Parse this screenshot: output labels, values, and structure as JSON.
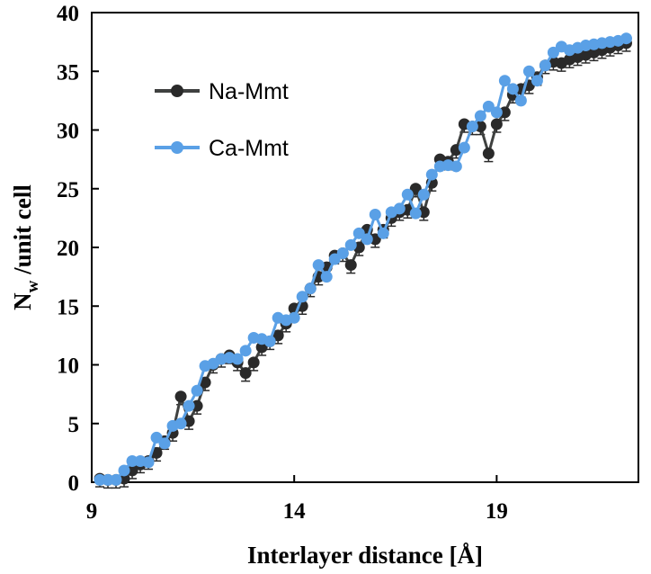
{
  "chart_data": {
    "type": "line",
    "xlabel": "Interlayer distance [Å]",
    "ylabel_main": "N",
    "ylabel_sub": "w",
    "ylabel_rest": " /unit cell",
    "xlim": [
      9,
      22.5
    ],
    "ylim": [
      0,
      40
    ],
    "xticks": [
      9,
      14,
      19
    ],
    "yticks": [
      0,
      5,
      10,
      15,
      20,
      25,
      30,
      35,
      40
    ],
    "grid": false,
    "legend_position": "upper-left",
    "series": [
      {
        "name": "Na-Mmt",
        "color": "#3f4140",
        "marker_color": "#2a2a2a",
        "x": [
          9.2,
          9.4,
          9.6,
          9.8,
          10.0,
          10.2,
          10.4,
          10.6,
          10.8,
          11.0,
          11.2,
          11.4,
          11.6,
          11.8,
          12.0,
          12.2,
          12.4,
          12.6,
          12.8,
          13.0,
          13.2,
          13.4,
          13.6,
          13.8,
          14.0,
          14.2,
          14.4,
          14.6,
          14.8,
          15.0,
          15.2,
          15.4,
          15.6,
          15.8,
          16.0,
          16.2,
          16.4,
          16.6,
          16.8,
          17.0,
          17.2,
          17.4,
          17.6,
          17.8,
          18.0,
          18.2,
          18.4,
          18.6,
          18.8,
          19.0,
          19.2,
          19.4,
          19.6,
          19.8,
          20.0,
          20.2,
          20.4,
          20.6,
          20.8,
          21.0,
          21.2,
          21.4,
          21.6,
          21.8,
          22.0,
          22.2
        ],
        "y": [
          0.3,
          0.2,
          0.2,
          0.3,
          1.0,
          1.5,
          1.8,
          2.5,
          3.5,
          4.2,
          7.3,
          5.2,
          6.5,
          8.5,
          10.0,
          10.5,
          10.8,
          10.2,
          9.3,
          10.2,
          11.5,
          12.0,
          12.5,
          13.5,
          14.8,
          15.0,
          16.5,
          17.5,
          18.3,
          19.3,
          19.5,
          18.5,
          20.0,
          21.5,
          20.7,
          21.5,
          22.5,
          23.0,
          23.2,
          25.0,
          23.0,
          25.5,
          27.5,
          27.3,
          28.3,
          30.5,
          30.3,
          30.3,
          28.0,
          30.5,
          31.5,
          33.0,
          33.5,
          33.8,
          34.5,
          35.5,
          35.8,
          35.7,
          36.0,
          36.2,
          36.4,
          36.6,
          36.8,
          37.0,
          37.2,
          37.4
        ]
      },
      {
        "name": "Ca-Mmt",
        "color": "#5aa0e6",
        "marker_color": "#5aa0e6",
        "x": [
          9.2,
          9.4,
          9.6,
          9.8,
          10.0,
          10.2,
          10.4,
          10.6,
          10.8,
          11.0,
          11.2,
          11.4,
          11.6,
          11.8,
          12.0,
          12.2,
          12.4,
          12.6,
          12.8,
          13.0,
          13.2,
          13.4,
          13.6,
          13.8,
          14.0,
          14.2,
          14.4,
          14.6,
          14.8,
          15.0,
          15.2,
          15.4,
          15.6,
          15.8,
          16.0,
          16.2,
          16.4,
          16.6,
          16.8,
          17.0,
          17.2,
          17.4,
          17.6,
          17.8,
          18.0,
          18.2,
          18.4,
          18.6,
          18.8,
          19.0,
          19.2,
          19.4,
          19.6,
          19.8,
          20.0,
          20.2,
          20.4,
          20.6,
          20.8,
          21.0,
          21.2,
          21.4,
          21.6,
          21.8,
          22.0,
          22.2
        ],
        "y": [
          0.2,
          0.2,
          0.2,
          1.0,
          1.8,
          1.8,
          1.7,
          3.8,
          3.3,
          4.8,
          5.0,
          6.5,
          7.8,
          9.9,
          10.1,
          10.5,
          10.6,
          10.5,
          11.2,
          12.3,
          12.2,
          12.0,
          14.0,
          13.8,
          14.0,
          15.8,
          16.5,
          18.5,
          17.5,
          19.0,
          19.5,
          20.2,
          21.2,
          20.7,
          22.8,
          21.2,
          23.0,
          23.3,
          24.5,
          22.9,
          24.5,
          26.2,
          26.9,
          27.0,
          26.9,
          28.5,
          30.3,
          31.2,
          32.0,
          31.5,
          34.2,
          33.5,
          32.5,
          35.0,
          34.2,
          35.5,
          36.6,
          37.1,
          36.8,
          37.0,
          37.2,
          37.3,
          37.4,
          37.5,
          37.6,
          37.8
        ]
      }
    ]
  }
}
